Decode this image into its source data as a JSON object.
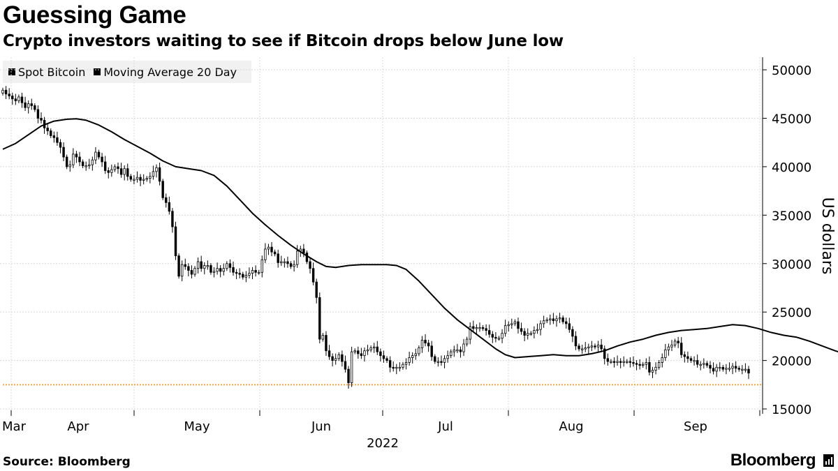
{
  "title": "Guessing Game",
  "subtitle": "Crypto investors waiting to see if Bitcoin drops below June low",
  "source": "Source: Bloomberg",
  "brand": "Bloomberg",
  "chart_data": {
    "type": "candlestick",
    "x_tick_labels": [
      "Mar",
      "Apr",
      "May",
      "Jun",
      "Jul",
      "Aug",
      "Sep"
    ],
    "x_year_label": "2022",
    "ylabel": "US dollars",
    "y_ticks": [
      15000,
      20000,
      25000,
      30000,
      35000,
      40000,
      45000,
      50000
    ],
    "ylim": [
      14500,
      51300
    ],
    "grid": true,
    "legend": {
      "placement": "top-left",
      "entries": [
        "Spot Bitcoin",
        "Moving Average 20 Day"
      ]
    },
    "reference_line": {
      "value": 17500,
      "color": "#f4a340",
      "style": "dotted"
    },
    "colors": {
      "candle": "#000000",
      "moving_average": "#000000",
      "grid": "#d9d9d9",
      "legend_bg": "#f1f1f1"
    },
    "spot_bitcoin_close": [
      47900,
      47500,
      47300,
      47000,
      46800,
      47200,
      46600,
      46100,
      46500,
      46300,
      45900,
      45000,
      44800,
      44000,
      43700,
      43200,
      43000,
      42500,
      42000,
      41000,
      40000,
      40200,
      41300,
      41000,
      40500,
      40100,
      40100,
      40200,
      40700,
      41500,
      41000,
      40500,
      39600,
      39400,
      39700,
      40000,
      39800,
      39200,
      39800,
      39000,
      38700,
      38700,
      38900,
      38600,
      38700,
      38800,
      39000,
      39500,
      39900,
      38500,
      36800,
      36300,
      35400,
      33800,
      30800,
      28700,
      29900,
      29700,
      29300,
      28900,
      29500,
      30200,
      29500,
      29800,
      29800,
      29100,
      29200,
      29500,
      29200,
      29500,
      30000,
      29600,
      29100,
      29000,
      28900,
      28600,
      28800,
      29000,
      29300,
      29100,
      29100,
      30400,
      31500,
      31700,
      31200,
      31000,
      30100,
      30200,
      30200,
      30000,
      29700,
      29900,
      31300,
      31500,
      31100,
      30200,
      29500,
      28100,
      26500,
      22200,
      22600,
      21000,
      20400,
      20000,
      20200,
      20600,
      19900,
      19100,
      17700,
      20900,
      21000,
      20700,
      20500,
      21000,
      21100,
      21300,
      21400,
      20900,
      20500,
      20200,
      20000,
      19300,
      19200,
      19300,
      19300,
      19600,
      19800,
      20300,
      20500,
      20700,
      21300,
      22100,
      21800,
      21500,
      20400,
      19900,
      19900,
      19800,
      20200,
      20500,
      20900,
      21100,
      21100,
      20900,
      21700,
      22200,
      23500,
      23300,
      23400,
      23400,
      23300,
      23100,
      22700,
      22400,
      22300,
      22300,
      22800,
      23600,
      23700,
      23800,
      24000,
      23300,
      23000,
      22600,
      22800,
      22800,
      23100,
      23200,
      23800,
      24100,
      24200,
      24300,
      24100,
      24300,
      24400,
      24000,
      23800,
      23200,
      22500,
      21500,
      21200,
      21200,
      21300,
      21400,
      21500,
      21400,
      21600,
      21200,
      20200,
      19900,
      19900,
      19800,
      19900,
      19800,
      19900,
      19900,
      19800,
      19700,
      19600,
      19500,
      19600,
      19800,
      18800,
      19000,
      19300,
      19800,
      20300,
      21100,
      21400,
      21600,
      22000,
      21800,
      20600,
      20400,
      20200,
      20000,
      20000,
      19600,
      19600,
      19700,
      19500,
      19200,
      18900,
      19300,
      19300,
      19100,
      19200,
      19200,
      19400,
      19200,
      19100,
      19100,
      19100,
      18700
    ],
    "moving_average_20_day": [
      [
        0,
        41800
      ],
      [
        4,
        42400
      ],
      [
        8,
        43300
      ],
      [
        12,
        44200
      ],
      [
        16,
        44700
      ],
      [
        20,
        44900
      ],
      [
        23,
        44950
      ],
      [
        26,
        44800
      ],
      [
        30,
        44300
      ],
      [
        34,
        43600
      ],
      [
        38,
        42800
      ],
      [
        42,
        42100
      ],
      [
        46,
        41400
      ],
      [
        50,
        40600
      ],
      [
        54,
        40000
      ],
      [
        58,
        39800
      ],
      [
        62,
        39600
      ],
      [
        66,
        39100
      ],
      [
        70,
        38000
      ],
      [
        74,
        36600
      ],
      [
        78,
        35200
      ],
      [
        82,
        34000
      ],
      [
        86,
        32900
      ],
      [
        90,
        31900
      ],
      [
        94,
        31000
      ],
      [
        98,
        30200
      ],
      [
        101,
        29700
      ],
      [
        104,
        29600
      ],
      [
        108,
        29800
      ],
      [
        112,
        29900
      ],
      [
        116,
        29900
      ],
      [
        120,
        29900
      ],
      [
        123,
        29800
      ],
      [
        126,
        29400
      ],
      [
        130,
        28200
      ],
      [
        134,
        26800
      ],
      [
        138,
        25400
      ],
      [
        142,
        24200
      ],
      [
        146,
        23200
      ],
      [
        150,
        22200
      ],
      [
        154,
        21200
      ],
      [
        157,
        20600
      ],
      [
        160,
        20300
      ],
      [
        164,
        20400
      ],
      [
        168,
        20500
      ],
      [
        172,
        20600
      ],
      [
        176,
        20500
      ],
      [
        180,
        20500
      ],
      [
        184,
        20700
      ],
      [
        188,
        21000
      ],
      [
        192,
        21500
      ],
      [
        196,
        21900
      ],
      [
        200,
        22200
      ],
      [
        204,
        22600
      ],
      [
        208,
        22900
      ],
      [
        212,
        23100
      ],
      [
        216,
        23200
      ],
      [
        220,
        23300
      ],
      [
        224,
        23500
      ],
      [
        228,
        23700
      ],
      [
        232,
        23600
      ],
      [
        236,
        23300
      ],
      [
        240,
        22900
      ],
      [
        244,
        22600
      ],
      [
        248,
        22400
      ],
      [
        252,
        22000
      ],
      [
        256,
        21500
      ],
      [
        260,
        21000
      ],
      [
        264,
        20600
      ],
      [
        268,
        20300
      ],
      [
        272,
        20400
      ],
      [
        276,
        20300
      ],
      [
        280,
        20100
      ],
      [
        284,
        19900
      ],
      [
        288,
        19800
      ],
      [
        292,
        19800
      ],
      [
        295,
        19800
      ]
    ]
  }
}
